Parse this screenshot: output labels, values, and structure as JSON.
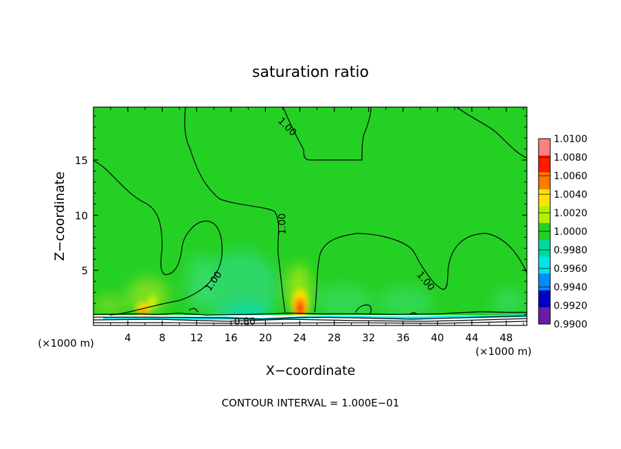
{
  "chart_data": {
    "type": "heatmap",
    "title": "saturation ratio",
    "xlabel": "X−coordinate",
    "ylabel": "Z−coordinate",
    "x_unit_left": "(×1000 m)",
    "x_unit_right": "(×1000 m)",
    "x_ticks": [
      4,
      8,
      12,
      16,
      20,
      24,
      28,
      32,
      36,
      40,
      44,
      48
    ],
    "y_ticks": [
      5,
      10,
      15
    ],
    "xlim": [
      0,
      50.4
    ],
    "ylim": [
      0,
      19.8
    ],
    "grid": false,
    "legend_position": "right",
    "colorbar": {
      "labels": [
        "1.0100",
        "1.0080",
        "1.0060",
        "1.0040",
        "1.0020",
        "1.0000",
        "0.9980",
        "0.9960",
        "0.9940",
        "0.9920",
        "0.9900"
      ],
      "colors": [
        "#ff8080",
        "#ff1a00",
        "#ff7800",
        "#ffe100",
        "#b4f000",
        "#25d025",
        "#00d99b",
        "#00e6e6",
        "#008cff",
        "#0000c8",
        "#6a1ca8"
      ]
    },
    "contour_labels": [
      {
        "text": "1.00",
        "x": 22.5,
        "y": 18.0,
        "rotate": 45
      },
      {
        "text": "1.00",
        "x": 22.0,
        "y": 9.2,
        "rotate": -90
      },
      {
        "text": "1.00",
        "x": 14.0,
        "y": 4.0,
        "rotate": -55
      },
      {
        "text": "1.00",
        "x": 38.6,
        "y": 4.0,
        "rotate": 50
      },
      {
        "text": "0.80",
        "x": 17.6,
        "y": 0.3,
        "rotate": 0
      }
    ],
    "contour_interval_text": "CONTOUR INTERVAL = 1.000E−01"
  }
}
